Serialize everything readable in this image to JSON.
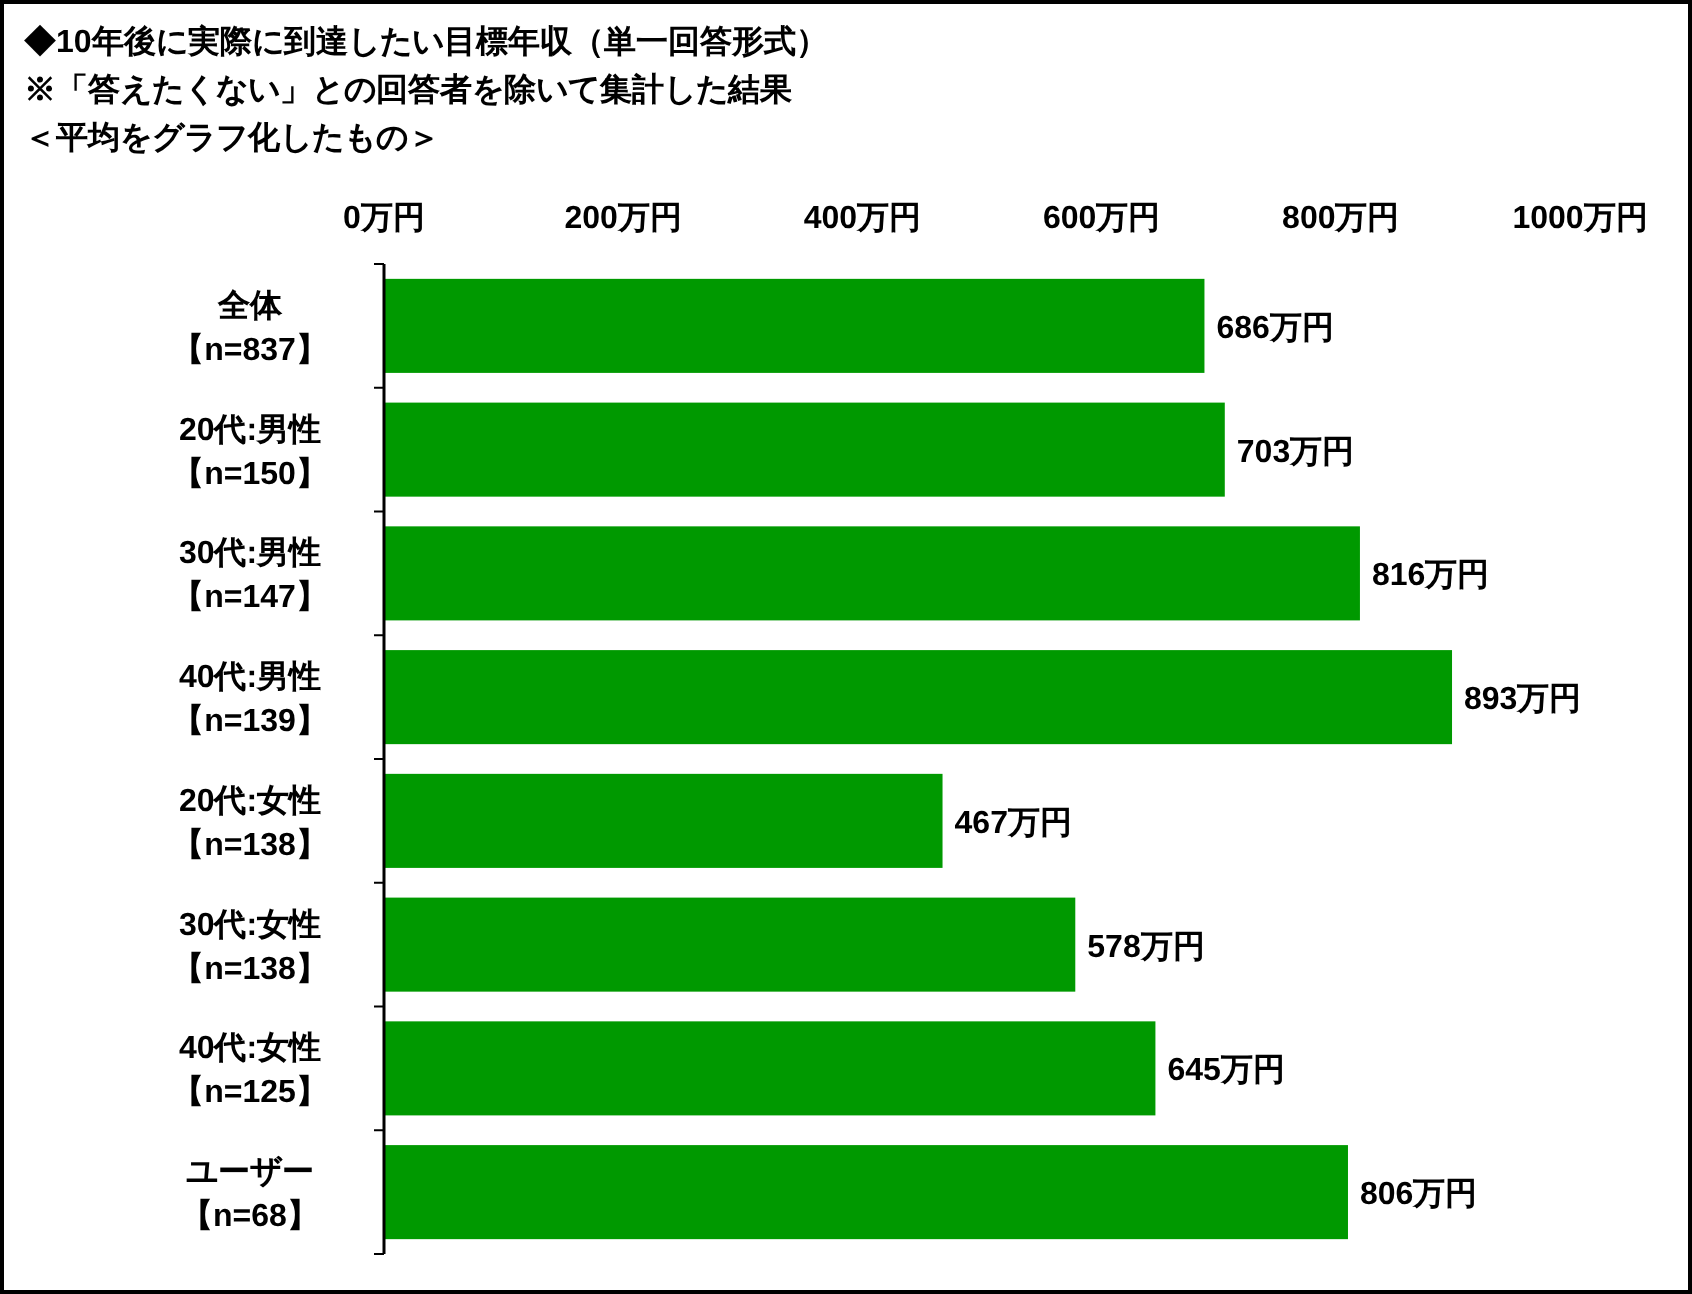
{
  "chart_data": {
    "type": "bar",
    "orientation": "horizontal",
    "title": "◆10年後に実際に到達したい目標年収（単一回答形式）",
    "subtitle": "※「答えたくない」との回答者を除いて集計した結果",
    "annotations": [
      "＜平均をグラフ化したもの＞"
    ],
    "categories": [
      "全体【n=837】",
      "20代:男性【n=150】",
      "30代:男性【n=147】",
      "40代:男性【n=139】",
      "20代:女性【n=138】",
      "30代:女性【n=138】",
      "40代:女性【n=125】",
      "ユーザー【n=68】"
    ],
    "values": [
      686,
      703,
      816,
      893,
      467,
      578,
      645,
      806
    ],
    "value_labels": [
      "686万円",
      "703万円",
      "816万円",
      "893万円",
      "467万円",
      "578万円",
      "645万円",
      "806万円"
    ],
    "color": "#009900",
    "xlim": [
      0,
      1000
    ],
    "xticks": [
      {
        "value": 0,
        "label": "0万円"
      },
      {
        "value": 200,
        "label": "200万円"
      },
      {
        "value": 400,
        "label": "400万円"
      },
      {
        "value": 600,
        "label": "600万円"
      },
      {
        "value": 800,
        "label": "800万円"
      },
      {
        "value": 1000,
        "label": "1000万円"
      }
    ]
  }
}
